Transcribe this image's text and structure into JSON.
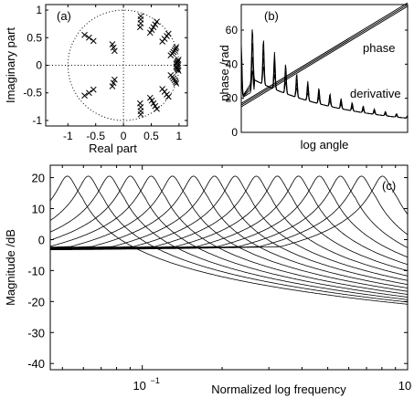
{
  "chart_data": [
    {
      "id": "a",
      "type": "scatter",
      "panel_label": "(a)",
      "xlabel": "Real part",
      "ylabel": "Imaginary part",
      "xlim": [
        -1.4,
        1.15
      ],
      "ylim": [
        -1.1,
        1.1
      ],
      "xticks": [
        -1,
        -0.5,
        0,
        0.5,
        1
      ],
      "xtick_labels": [
        "-1",
        "-0.5",
        "0",
        "0.5",
        "1"
      ],
      "yticks": [
        -1,
        -0.5,
        0,
        0.5,
        1
      ],
      "ytick_labels": [
        "-1",
        "-0.5",
        "0",
        "0.5",
        "1"
      ],
      "unit_circle": true,
      "reference_lines": "dotted x=0 and y=0",
      "marker": "x",
      "points": [
        [
          0.31,
          0.89
        ],
        [
          0.31,
          0.83
        ],
        [
          0.31,
          0.76
        ],
        [
          0.3,
          0.69
        ],
        [
          0.6,
          0.79
        ],
        [
          0.57,
          0.74
        ],
        [
          0.54,
          0.69
        ],
        [
          0.51,
          0.64
        ],
        [
          0.48,
          0.59
        ],
        [
          0.81,
          0.57
        ],
        [
          0.78,
          0.53
        ],
        [
          0.74,
          0.48
        ],
        [
          0.7,
          0.43
        ],
        [
          0.95,
          0.33
        ],
        [
          0.94,
          0.3
        ],
        [
          0.92,
          0.27
        ],
        [
          0.9,
          0.24
        ],
        [
          0.88,
          0.21
        ],
        [
          0.85,
          0.18
        ],
        [
          0.99,
          0.1
        ],
        [
          0.98,
          0.08
        ],
        [
          0.97,
          0.06
        ],
        [
          0.96,
          0.04
        ],
        [
          0.95,
          0.02
        ],
        [
          -0.7,
          0.55
        ],
        [
          -0.62,
          0.5
        ],
        [
          -0.54,
          0.44
        ],
        [
          -0.2,
          0.38
        ],
        [
          -0.18,
          0.32
        ],
        [
          -0.16,
          0.26
        ],
        [
          0.31,
          -0.89
        ],
        [
          0.31,
          -0.83
        ],
        [
          0.31,
          -0.76
        ],
        [
          0.3,
          -0.69
        ],
        [
          0.6,
          -0.79
        ],
        [
          0.57,
          -0.74
        ],
        [
          0.54,
          -0.69
        ],
        [
          0.51,
          -0.64
        ],
        [
          0.48,
          -0.59
        ],
        [
          0.81,
          -0.57
        ],
        [
          0.78,
          -0.53
        ],
        [
          0.74,
          -0.48
        ],
        [
          0.7,
          -0.43
        ],
        [
          0.95,
          -0.33
        ],
        [
          0.94,
          -0.3
        ],
        [
          0.92,
          -0.27
        ],
        [
          0.9,
          -0.24
        ],
        [
          0.88,
          -0.21
        ],
        [
          0.85,
          -0.18
        ],
        [
          0.99,
          -0.1
        ],
        [
          0.98,
          -0.08
        ],
        [
          0.97,
          -0.06
        ],
        [
          0.96,
          -0.04
        ],
        [
          0.95,
          -0.02
        ],
        [
          -0.7,
          -0.55
        ],
        [
          -0.62,
          -0.5
        ],
        [
          -0.54,
          -0.44
        ],
        [
          -0.2,
          -0.38
        ],
        [
          -0.18,
          -0.32
        ],
        [
          -0.16,
          -0.26
        ]
      ]
    },
    {
      "id": "b",
      "type": "line",
      "panel_label": "(b)",
      "xlabel": "log angle",
      "ylabel": "phase /rad",
      "xlim": [
        0,
        1
      ],
      "ylim": [
        0,
        75
      ],
      "yticks": [
        0,
        20,
        40,
        60
      ],
      "ytick_labels": [
        "0",
        "20",
        "40",
        "60"
      ],
      "annotations": [
        "phase",
        "derivative"
      ],
      "phase_series": [
        {
          "x": [
            0,
            1
          ],
          "y": [
            17,
            76
          ]
        },
        {
          "x": [
            0,
            1
          ],
          "y": [
            16,
            75
          ]
        },
        {
          "x": [
            0,
            1
          ],
          "y": [
            15,
            74
          ]
        }
      ],
      "derivative_envelope": {
        "x": [
          0.08,
          1
        ],
        "y": [
          62,
          2
        ]
      },
      "derivative_series": [
        {
          "peak_scale": 1.0,
          "base": [
            0.2,
            0.45
          ]
        },
        {
          "peak_scale": 0.8,
          "base": [
            0.15,
            0.4
          ]
        },
        {
          "peak_scale": 0.6,
          "base": [
            0.1,
            0.35
          ]
        },
        {
          "peak_scale": 0.4,
          "base": [
            0.05,
            0.3
          ]
        }
      ]
    },
    {
      "id": "c",
      "type": "line",
      "panel_label": "(c)",
      "xlabel": "Normalized log frequency",
      "ylabel": "Magnitude /dB",
      "xscale": "log",
      "xlim": [
        0.045,
        1.0
      ],
      "ylim": [
        -42,
        24
      ],
      "xticks": [
        0.1,
        1
      ],
      "xtick_labels": [
        "10",
        "10"
      ],
      "xtick_exponents": [
        "−1",
        "0"
      ],
      "yticks": [
        -40,
        -30,
        -20,
        -10,
        0,
        10,
        20
      ],
      "ytick_labels": [
        "-40",
        "-30",
        "-20",
        "-10",
        "0",
        "10",
        "20"
      ],
      "resonance_center_frequencies": [
        0.0522,
        0.0626,
        0.0751,
        0.0901,
        0.108,
        0.13,
        0.156,
        0.187,
        0.224,
        0.269,
        0.323,
        0.388,
        0.465,
        0.558,
        0.67,
        0.804
      ],
      "resonance_peak_db": 20.5,
      "resonance_bandwidth_decades": 0.028,
      "lowpass_gain_offset_db": -8
    }
  ]
}
